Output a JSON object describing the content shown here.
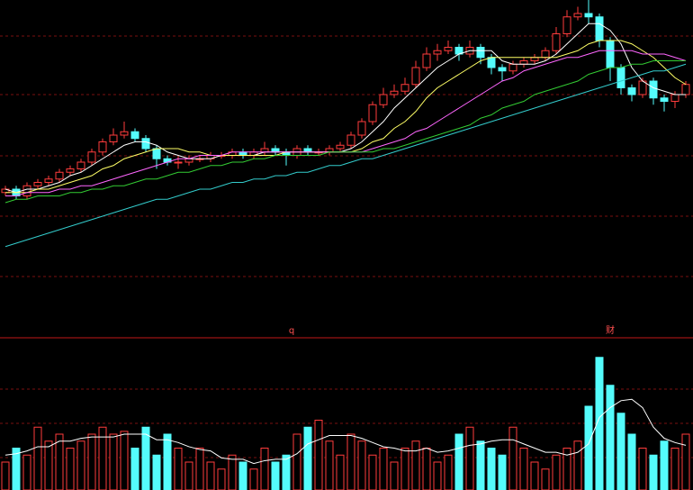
{
  "chart_data": [
    {
      "type": "candlestick",
      "up_color": "#ff3c3c",
      "down_color": "#54fcfc",
      "ylim": [
        0,
        100
      ],
      "annotations": [
        "q",
        "财"
      ],
      "open": [
        43,
        44,
        42,
        45,
        46,
        47,
        49,
        50,
        52,
        55,
        58,
        60,
        61,
        59,
        56,
        53,
        52,
        52,
        53,
        53,
        54,
        54,
        55,
        54,
        55,
        56,
        55,
        54,
        56,
        55,
        55,
        56,
        57,
        60,
        64,
        69,
        72,
        73,
        75,
        80,
        84,
        85,
        86,
        84,
        86,
        83,
        80,
        79,
        81,
        82,
        83,
        85,
        90,
        95,
        96,
        95,
        88,
        80,
        74,
        72,
        76,
        71,
        70,
        72
      ],
      "high": [
        45,
        45,
        46,
        47,
        48,
        50,
        51,
        53,
        56,
        59,
        62,
        64,
        62,
        60,
        57,
        54,
        54,
        54,
        54,
        55,
        55,
        56,
        56,
        56,
        58,
        57,
        56,
        57,
        57,
        56,
        57,
        58,
        61,
        65,
        70,
        74,
        75,
        77,
        82,
        86,
        87,
        88,
        87,
        88,
        87,
        84,
        81,
        82,
        83,
        84,
        86,
        92,
        97,
        98,
        100,
        96,
        89,
        81,
        75,
        77,
        77,
        72,
        73,
        76
      ],
      "low": [
        42,
        41,
        41,
        44,
        45,
        46,
        48,
        49,
        51,
        54,
        57,
        59,
        58,
        55,
        50,
        51,
        50,
        51,
        52,
        52,
        53,
        53,
        53,
        53,
        54,
        54,
        51,
        53,
        54,
        54,
        54,
        55,
        56,
        59,
        63,
        68,
        71,
        72,
        74,
        79,
        82,
        84,
        82,
        83,
        81,
        78,
        76,
        78,
        80,
        81,
        82,
        84,
        89,
        94,
        93,
        86,
        76,
        72,
        70,
        71,
        69,
        67,
        68,
        71
      ],
      "close": [
        44,
        42,
        45,
        46,
        47,
        49,
        50,
        52,
        55,
        58,
        60,
        61,
        59,
        56,
        53,
        52,
        52,
        53,
        53,
        54,
        54,
        55,
        54,
        55,
        56,
        55,
        54,
        56,
        55,
        55,
        56,
        57,
        60,
        64,
        69,
        72,
        73,
        75,
        80,
        84,
        85,
        86,
        84,
        86,
        83,
        80,
        79,
        81,
        82,
        83,
        85,
        90,
        95,
        96,
        95,
        88,
        80,
        74,
        72,
        76,
        71,
        70,
        72,
        75
      ],
      "lines": [
        {
          "color": "#ffffff",
          "values": [
            44,
            43,
            44,
            44,
            45,
            46,
            48,
            49,
            51,
            53,
            55,
            57,
            58,
            58,
            57,
            55,
            54,
            53,
            53,
            53,
            54,
            54,
            54,
            54,
            55,
            55,
            55,
            55,
            55,
            55,
            55,
            55,
            56,
            58,
            61,
            64,
            68,
            71,
            74,
            77,
            80,
            82,
            84,
            85,
            85,
            85,
            82,
            81,
            81,
            81,
            82,
            84,
            87,
            90,
            93,
            93,
            91,
            87,
            80,
            76,
            74,
            73,
            72,
            72
          ]
        },
        {
          "color": "#ffff66",
          "values": [
            43,
            43,
            43,
            44,
            44,
            45,
            46,
            47,
            48,
            50,
            51,
            53,
            54,
            55,
            56,
            56,
            56,
            55,
            55,
            54,
            54,
            54,
            54,
            54,
            54,
            54,
            55,
            55,
            55,
            55,
            55,
            55,
            55,
            56,
            58,
            59,
            62,
            64,
            67,
            71,
            74,
            76,
            78,
            80,
            82,
            83,
            83,
            83,
            83,
            83,
            83,
            83,
            84,
            85,
            87,
            88,
            88,
            88,
            87,
            85,
            83,
            80,
            77,
            75
          ]
        },
        {
          "color": "#ff66ff",
          "values": [
            42,
            42,
            43,
            43,
            43,
            44,
            44,
            45,
            45,
            46,
            47,
            48,
            49,
            50,
            51,
            52,
            53,
            53,
            54,
            54,
            54,
            55,
            55,
            55,
            55,
            55,
            55,
            55,
            55,
            55,
            55,
            55,
            55,
            55,
            56,
            57,
            58,
            59,
            61,
            62,
            64,
            66,
            68,
            70,
            72,
            74,
            76,
            77,
            79,
            80,
            81,
            82,
            83,
            83,
            84,
            85,
            85,
            85,
            85,
            84,
            84,
            84,
            83,
            82
          ]
        },
        {
          "color": "#33cc33",
          "values": [
            40,
            41,
            41,
            42,
            42,
            42,
            43,
            43,
            44,
            44,
            45,
            45,
            46,
            47,
            47,
            48,
            49,
            49,
            50,
            51,
            51,
            52,
            52,
            53,
            53,
            54,
            54,
            54,
            54,
            54,
            55,
            55,
            55,
            55,
            55,
            56,
            56,
            57,
            58,
            59,
            60,
            61,
            62,
            63,
            65,
            66,
            68,
            69,
            70,
            72,
            73,
            74,
            75,
            76,
            78,
            79,
            80,
            80,
            81,
            81,
            82,
            82,
            82,
            82
          ]
        },
        {
          "color": "#33cccc",
          "values": [
            27,
            28,
            29,
            30,
            31,
            32,
            33,
            34,
            35,
            36,
            37,
            38,
            39,
            40,
            41,
            41,
            42,
            43,
            44,
            44,
            45,
            46,
            46,
            47,
            47,
            48,
            48,
            49,
            49,
            50,
            51,
            51,
            52,
            53,
            53,
            54,
            55,
            56,
            57,
            58,
            59,
            60,
            61,
            62,
            63,
            64,
            65,
            66,
            67,
            68,
            69,
            70,
            71,
            72,
            73,
            74,
            75,
            76,
            77,
            78,
            79,
            79,
            80,
            81
          ]
        }
      ]
    },
    {
      "type": "bar",
      "ylim": [
        0,
        100
      ],
      "values": [
        20,
        30,
        25,
        45,
        35,
        40,
        30,
        35,
        40,
        45,
        40,
        42,
        30,
        45,
        25,
        40,
        30,
        20,
        30,
        20,
        15,
        25,
        20,
        15,
        30,
        20,
        25,
        40,
        45,
        50,
        35,
        25,
        40,
        35,
        25,
        30,
        20,
        30,
        35,
        30,
        20,
        25,
        40,
        45,
        35,
        30,
        25,
        45,
        30,
        20,
        15,
        25,
        30,
        35,
        60,
        95,
        75,
        55,
        40,
        30,
        25,
        35,
        30,
        40
      ],
      "lines": [
        {
          "color": "#ffffff",
          "values": [
            25,
            26,
            28,
            31,
            31,
            35,
            35,
            37,
            38,
            38,
            38,
            40,
            40,
            40,
            36,
            36,
            34,
            31,
            29,
            28,
            23,
            22,
            22,
            19,
            21,
            22,
            22,
            26,
            33,
            36,
            39,
            39,
            39,
            37,
            34,
            31,
            30,
            28,
            28,
            30,
            27,
            28,
            30,
            32,
            33,
            35,
            36,
            36,
            33,
            30,
            27,
            27,
            25,
            27,
            33,
            52,
            59,
            64,
            65,
            59,
            45,
            37,
            34,
            32
          ]
        }
      ]
    }
  ]
}
